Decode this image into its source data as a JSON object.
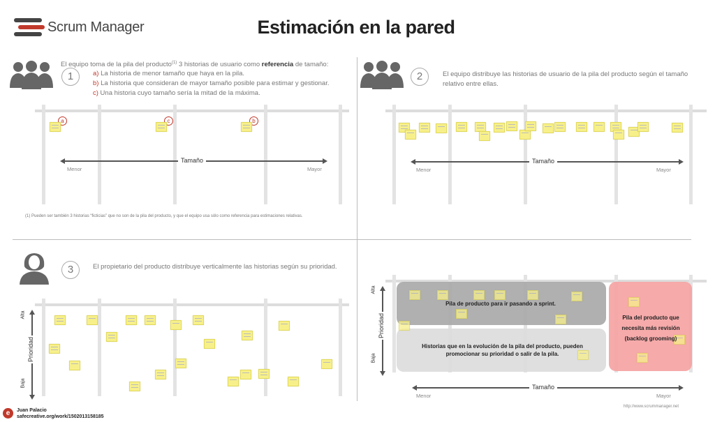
{
  "header": {
    "logo_text": "Scrum Manager",
    "title": "Estimación en la pared"
  },
  "panel1": {
    "step": "1",
    "intro_pre": "El equipo toma de la pila del producto",
    "intro_sup": "(1)",
    "intro_mid": " 3 historias de usuario como ",
    "intro_bold": "referencia",
    "intro_post": " de tamaño:",
    "items": [
      {
        "letter": "a)",
        "text": " La historia de menor tamaño que haya en la pila."
      },
      {
        "letter": "b)",
        "text": " La historia que consideran de mayor tamaño posible para estimar y gestionar."
      },
      {
        "letter": "c)",
        "text": " Una historia cuyo tamaño sería la mitad de la máxima."
      }
    ],
    "markers": [
      "a",
      "c",
      "b"
    ],
    "axis_label": "Tamaño",
    "axis_min": "Menor",
    "axis_max": "Mayor",
    "footnote": "(1) Pueden ser también 3 historias “ficticias”  que no son de la pila del producto, y que el equipo usa sólo como referencia para estimaciones relativas."
  },
  "panel2": {
    "step": "2",
    "text": "El equipo distribuye las historias de usuario de la pila del producto según el tamaño relativo entre ellas.",
    "axis_label": "Tamaño",
    "axis_min": "Menor",
    "axis_max": "Mayor"
  },
  "panel3": {
    "step": "3",
    "text": "El propietario del producto distribuye verticalmente las historias según su prioridad.",
    "axis_label": "Prioridad",
    "axis_high": "Alta",
    "axis_low": "Baja"
  },
  "panel4": {
    "zone_sprint": "Pila de producto para ir pasando a sprint.",
    "zone_evolution": "Historias que en la evolución de la pila del producto, pueden promocionar su prioridad o salir de la pila.",
    "zone_review": "Pila del producto que necesita más revisión (backlog grooming)",
    "axis_label": "Tamaño",
    "axis_min": "Menor",
    "axis_max": "Mayor",
    "vaxis_label": "Prioridad",
    "vaxis_high": "Alta",
    "vaxis_low": "Baja",
    "url": "http://www.scrummanager.net"
  },
  "footer": {
    "author": "Juan Palacio",
    "license": "safecreative.org/work/1502013158185"
  },
  "colors": {
    "zone_sprint": "#a9a9a9",
    "zone_evolution": "#dcdcdc",
    "zone_review": "#f5a3a3",
    "note": "#f7f08a",
    "accent_red": "#c0392b"
  }
}
